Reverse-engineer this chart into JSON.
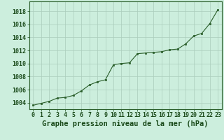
{
  "x": [
    0,
    1,
    2,
    3,
    4,
    5,
    6,
    7,
    8,
    9,
    10,
    11,
    12,
    13,
    14,
    15,
    16,
    17,
    18,
    19,
    20,
    21,
    22,
    23
  ],
  "y": [
    1003.6,
    1003.9,
    1004.2,
    1004.7,
    1004.8,
    1005.1,
    1005.8,
    1006.7,
    1007.2,
    1007.5,
    1009.8,
    1010.0,
    1010.1,
    1011.5,
    1011.6,
    1011.7,
    1011.8,
    1012.1,
    1012.2,
    1013.0,
    1014.2,
    1014.6,
    1016.1,
    1018.2
  ],
  "line_color": "#2a5e2a",
  "marker_color": "#2a5e2a",
  "bg_color": "#cceedd",
  "grid_color": "#aaccbb",
  "xlabel": "Graphe pression niveau de la mer (hPa)",
  "ylabel_ticks": [
    1004,
    1006,
    1008,
    1010,
    1012,
    1014,
    1016,
    1018
  ],
  "ylim": [
    1003.0,
    1019.5
  ],
  "xlim": [
    -0.5,
    23.5
  ],
  "xlabel_fontsize": 7.5,
  "tick_fontsize": 6.0
}
